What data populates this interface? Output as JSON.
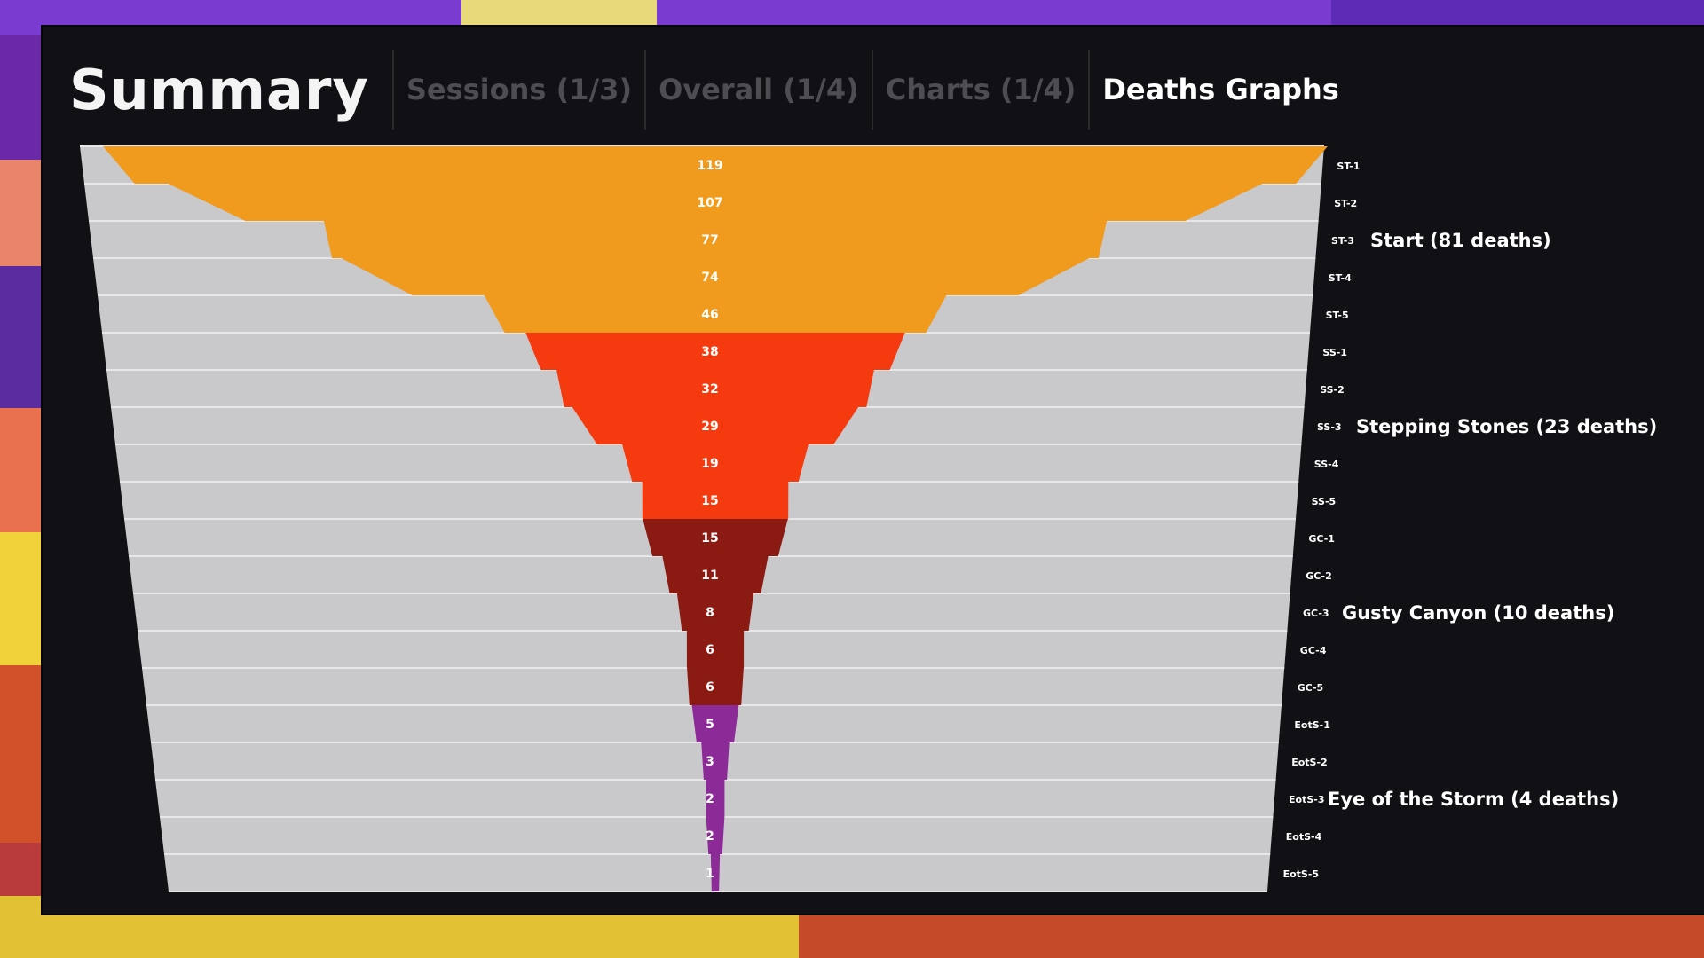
{
  "header": {
    "title": "Summary",
    "tabs": [
      {
        "label": "Sessions (1/3)",
        "active": false
      },
      {
        "label": "Overall (1/4)",
        "active": false
      },
      {
        "label": "Charts (1/4)",
        "active": false
      },
      {
        "label": "Deaths Graphs",
        "active": true
      }
    ]
  },
  "colors": {
    "background_panel": "#111014",
    "chart_background": "#c9c9cb",
    "gridline": "#e7e7e9",
    "text_primary": "#ffffff",
    "tab_inactive": "#4e4e52"
  },
  "chart_data": {
    "type": "area",
    "orientation": "horizontal-symmetric-funnel",
    "rooms": [
      "ST-1",
      "ST-2",
      "ST-3",
      "ST-4",
      "ST-5",
      "SS-1",
      "SS-2",
      "SS-3",
      "SS-4",
      "SS-5",
      "GC-1",
      "GC-2",
      "GC-3",
      "GC-4",
      "GC-5",
      "EotS-1",
      "EotS-2",
      "EotS-3",
      "EotS-4",
      "EotS-5"
    ],
    "values": [
      119,
      107,
      77,
      74,
      46,
      38,
      32,
      29,
      19,
      15,
      15,
      11,
      8,
      6,
      6,
      5,
      3,
      2,
      2,
      1
    ],
    "groups": [
      {
        "name": "Start (81 deaths)",
        "color": "#f09a1e",
        "start": 0,
        "end": 4,
        "label_row": 2
      },
      {
        "name": "Stepping Stones (23 deaths)",
        "color": "#f53a10",
        "start": 5,
        "end": 9,
        "label_row": 7
      },
      {
        "name": "Gusty Canyon (10 deaths)",
        "color": "#8a1a12",
        "start": 10,
        "end": 14,
        "label_row": 12
      },
      {
        "name": "Eye of the Storm (4 deaths)",
        "color": "#8c2a98",
        "start": 15,
        "end": 19,
        "label_row": 17
      }
    ],
    "xlim": [
      -119,
      119
    ]
  }
}
